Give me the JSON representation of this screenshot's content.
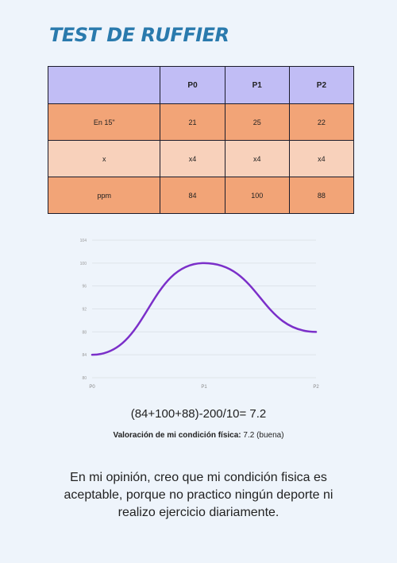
{
  "title": "TEST DE RUFFIER",
  "table": {
    "headers": [
      "",
      "P0",
      "P1",
      "P2"
    ],
    "rows": [
      [
        "En 15\"",
        "21",
        "25",
        "22"
      ],
      [
        "x",
        "x4",
        "x4",
        "x4"
      ],
      [
        "ppm",
        "84",
        "100",
        "88"
      ]
    ]
  },
  "chart_data": {
    "type": "line",
    "categories": [
      "P0",
      "P1",
      "P2"
    ],
    "series": [
      {
        "values": [
          84,
          100,
          88
        ]
      }
    ],
    "ylim": [
      80,
      104
    ],
    "yticks": [
      80,
      84,
      88,
      92,
      96,
      100,
      104
    ],
    "grid": true,
    "line_color": "#7b2fc9"
  },
  "formula": "(84+100+88)-200/10= 7.2",
  "valoracion": {
    "label": "Valoración de mi condición física:",
    "value": "7.2 (buena)"
  },
  "opinion": "En mi opinión, creo que mi condición fisica es aceptable, porque no practico ningún deporte ni realizo ejercicio diariamente."
}
